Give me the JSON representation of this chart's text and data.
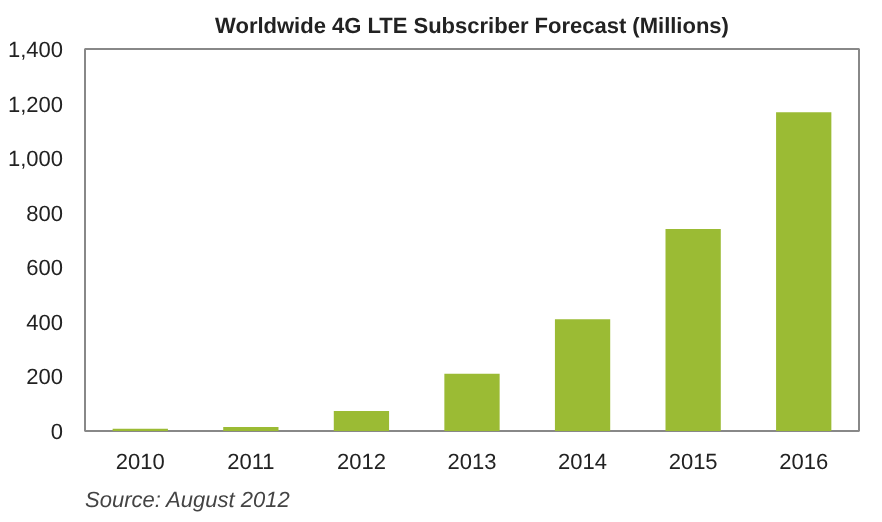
{
  "chart_data": {
    "type": "bar",
    "title": "Worldwide 4G LTE Subscriber Forecast (Millions)",
    "categories": [
      "2010",
      "2011",
      "2012",
      "2013",
      "2014",
      "2015",
      "2016"
    ],
    "values": [
      8,
      15,
      73,
      210,
      410,
      740,
      1168
    ],
    "color": "#9bbb34",
    "ylim": [
      0,
      1400
    ],
    "yticks": [
      {
        "value": 0,
        "label": "0"
      },
      {
        "value": 200,
        "label": "200"
      },
      {
        "value": 400,
        "label": "400"
      },
      {
        "value": 600,
        "label": "600"
      },
      {
        "value": 800,
        "label": "800"
      },
      {
        "value": 1000,
        "label": "1,000"
      },
      {
        "value": 1200,
        "label": "1,200"
      },
      {
        "value": 1400,
        "label": "1,400"
      }
    ],
    "annotations": [
      "Source: August 2012"
    ]
  }
}
